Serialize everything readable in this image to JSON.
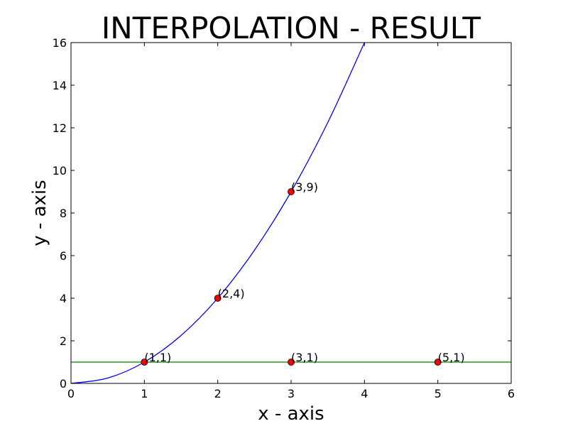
{
  "chart_data": {
    "type": "line",
    "title": "INTERPOLATION - RESULT",
    "xlabel": "x - axis",
    "ylabel": "y - axis",
    "xlim": [
      0,
      6
    ],
    "ylim": [
      0,
      16
    ],
    "xticks": [
      "0",
      "1",
      "2",
      "3",
      "4",
      "5",
      "6"
    ],
    "yticks": [
      "0",
      "2",
      "4",
      "6",
      "8",
      "10",
      "12",
      "14",
      "16"
    ],
    "grid": false,
    "series": [
      {
        "color": "#0000ff",
        "x": [
          0,
          0.5,
          1,
          1.5,
          2,
          2.5,
          3,
          3.5,
          4
        ],
        "y": [
          0,
          0.25,
          1,
          2.25,
          4,
          6.25,
          9,
          12.25,
          16
        ]
      },
      {
        "color": "#008000",
        "x": [
          0,
          6
        ],
        "y": [
          1,
          1
        ]
      }
    ],
    "points": [
      {
        "x": 1,
        "y": 1,
        "label": "(1,1)"
      },
      {
        "x": 2,
        "y": 4,
        "label": "(2,4)"
      },
      {
        "x": 3,
        "y": 9,
        "label": "(3,9)"
      },
      {
        "x": 3,
        "y": 1,
        "label": "(3,1)"
      },
      {
        "x": 5,
        "y": 1,
        "label": "(5,1)"
      }
    ],
    "point_color": "#ff0000"
  }
}
